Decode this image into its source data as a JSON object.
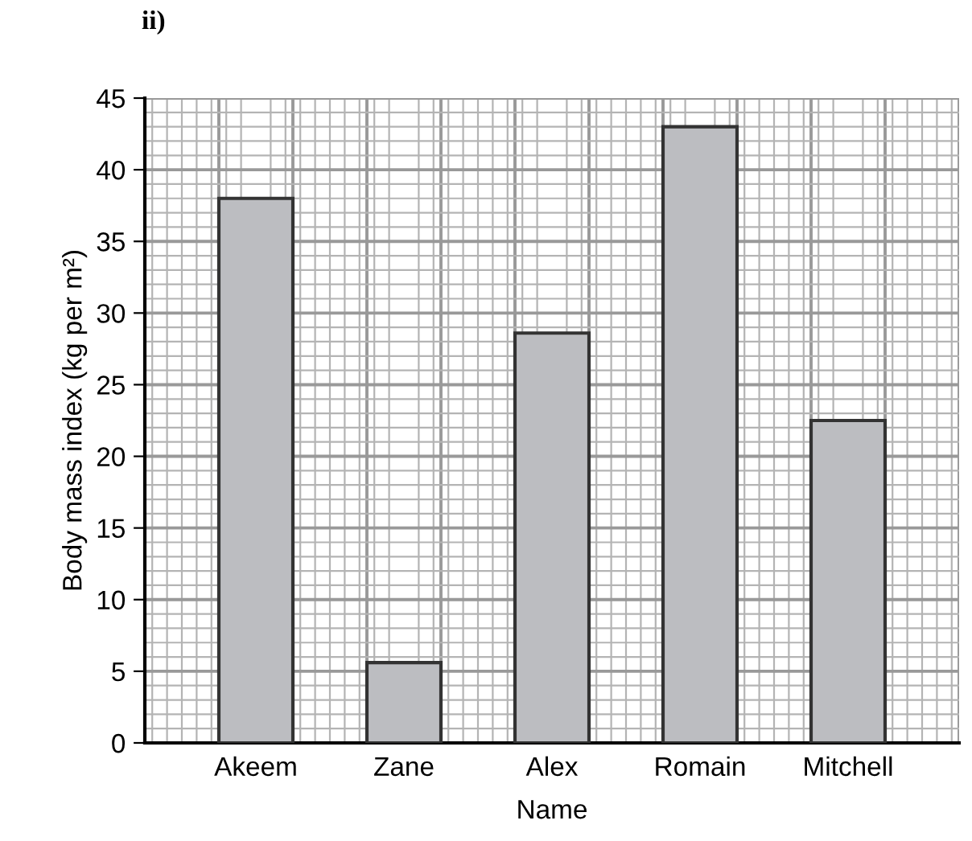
{
  "chart_data": {
    "type": "bar",
    "title": "ii)",
    "xlabel": "Name",
    "ylabel": "Body mass index (kg per m²)",
    "categories": [
      "Akeem",
      "Zane",
      "Alex",
      "Romain",
      "Mitchell"
    ],
    "values": [
      38,
      5.6,
      28.6,
      43,
      22.5
    ],
    "color": "#bcbdc1",
    "ylim": [
      0,
      45
    ],
    "yticks": [
      0,
      5,
      10,
      15,
      20,
      25,
      30,
      35,
      40,
      45
    ],
    "grid": true
  }
}
